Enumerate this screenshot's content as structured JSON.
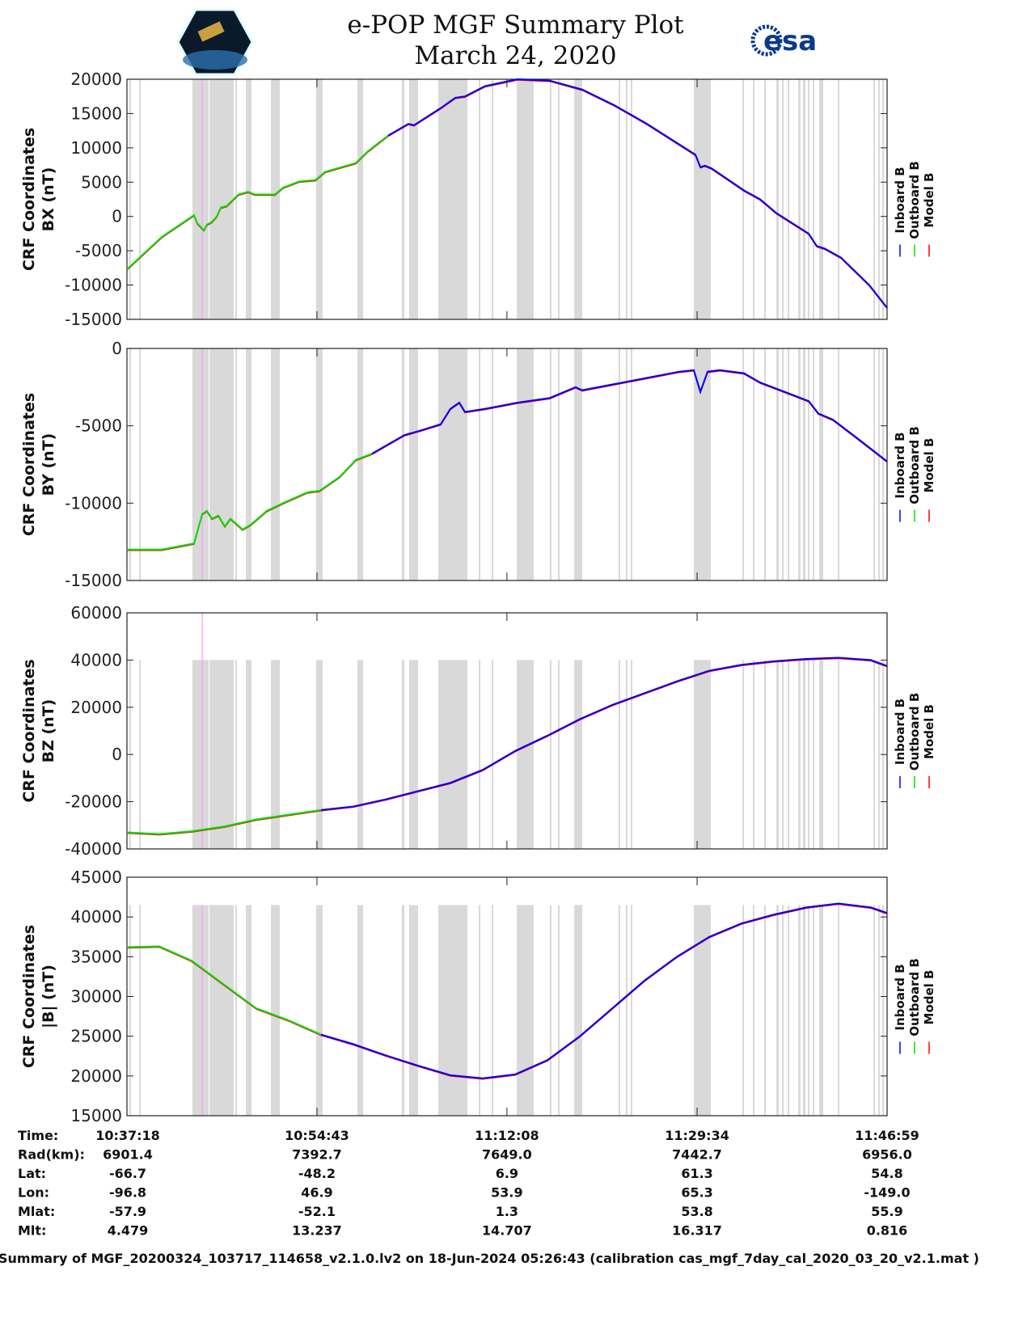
{
  "header": {
    "title": "e-POP MGF Summary Plot",
    "date": "March 24, 2020",
    "left_logo": "CASSIOPE",
    "right_logo": "esa"
  },
  "colors": {
    "inboard": "#0000ff",
    "outboard": "#00e000",
    "model": "#ff0000",
    "band": "#d9d9d9",
    "marker": "#ff99ff"
  },
  "chart_data": {
    "type": "line",
    "x_unit": "seconds since 10:37:18",
    "x_range": [
      0,
      4181
    ],
    "x_ticks": [
      0,
      1045,
      2090,
      3136,
      4181
    ],
    "legend": [
      "Inboard B",
      "Outboard B",
      "Model B"
    ],
    "legend_placement": "right",
    "bands_s": [
      [
        13,
        22
      ],
      [
        67,
        76
      ],
      [
        360,
        449
      ],
      [
        454,
        587
      ],
      [
        596,
        605
      ],
      [
        654,
        685
      ],
      [
        792,
        841
      ],
      [
        1041,
        1076
      ],
      [
        1268,
        1299
      ],
      [
        1512,
        1526
      ],
      [
        1552,
        1601
      ],
      [
        1712,
        1873
      ],
      [
        1935,
        1944
      ],
      [
        2006,
        2015
      ],
      [
        2144,
        2237
      ],
      [
        2326,
        2335
      ],
      [
        2371,
        2380
      ],
      [
        2460,
        2504
      ],
      [
        2704,
        2713
      ],
      [
        2744,
        2753
      ],
      [
        2771,
        2780
      ],
      [
        3118,
        3211
      ],
      [
        3385,
        3394
      ],
      [
        3443,
        3452
      ],
      [
        3505,
        3514
      ],
      [
        3572,
        3585
      ],
      [
        3603,
        3612
      ],
      [
        3634,
        3643
      ],
      [
        3692,
        3705
      ],
      [
        3718,
        3732
      ],
      [
        3745,
        3754
      ],
      [
        3772,
        3781
      ],
      [
        3808,
        3830
      ],
      [
        3910,
        3919
      ],
      [
        4106,
        4115
      ],
      [
        4132,
        4141
      ],
      [
        4155,
        4164
      ]
    ],
    "marker_s": 414,
    "panels": [
      {
        "ylabel1": "CRF Coordinates",
        "ylabel2": "BX (nT)",
        "ylim": [
          -15000,
          20000
        ],
        "yticks": [
          -15000,
          -10000,
          -5000,
          0,
          5000,
          10000,
          15000,
          20000
        ],
        "band_top": 20000,
        "marker_top": 20000,
        "inboard_start_s": 1437,
        "t": [
          0,
          191,
          369,
          387,
          423,
          440,
          467,
          494,
          516,
          547,
          614,
          667,
          703,
          814,
          858,
          947,
          1036,
          1090,
          1259,
          1325,
          1437,
          1548,
          1579,
          1726,
          1806,
          1859,
          1970,
          2148,
          2326,
          2504,
          2682,
          2860,
          3038,
          3127,
          3154,
          3180,
          3216,
          3394,
          3483,
          3572,
          3661,
          3750,
          3794,
          3839,
          3928,
          4083,
          4181
        ],
        "values": [
          -7700,
          -3000,
          200,
          -1000,
          -2000,
          -1200,
          -800,
          0,
          1300,
          1500,
          3200,
          3600,
          3200,
          3200,
          4200,
          5100,
          5300,
          6500,
          7800,
          9500,
          11800,
          13500,
          13300,
          15800,
          17300,
          17500,
          19000,
          20000,
          19800,
          18500,
          16200,
          13500,
          10500,
          9000,
          7200,
          7400,
          7000,
          3800,
          2500,
          500,
          -1000,
          -2500,
          -4300,
          -4700,
          -6000,
          -10000,
          -13300
        ]
      },
      {
        "ylabel1": "CRF Coordinates",
        "ylabel2": "BY (nT)",
        "ylim": [
          -15000,
          0
        ],
        "yticks": [
          -15000,
          -10000,
          -5000,
          0
        ],
        "band_top": 0,
        "marker_top": 0,
        "inboard_start_s": 1348,
        "t": [
          0,
          191,
          369,
          414,
          440,
          467,
          503,
          538,
          569,
          636,
          680,
          769,
          858,
          992,
          1059,
          1170,
          1259,
          1348,
          1437,
          1526,
          1615,
          1726,
          1779,
          1828,
          1859,
          1970,
          2148,
          2326,
          2468,
          2504,
          2682,
          2860,
          3038,
          3118,
          3154,
          3194,
          3261,
          3394,
          3483,
          3617,
          3750,
          3803,
          3883,
          4017,
          4181
        ],
        "values": [
          -13000,
          -13000,
          -12600,
          -10700,
          -10500,
          -11000,
          -10800,
          -11500,
          -11000,
          -11700,
          -11400,
          -10500,
          -10000,
          -9300,
          -9200,
          -8300,
          -7200,
          -6800,
          -6200,
          -5600,
          -5300,
          -4900,
          -3900,
          -3500,
          -4100,
          -3900,
          -3500,
          -3200,
          -2500,
          -2700,
          -2300,
          -1900,
          -1500,
          -1400,
          -2800,
          -1500,
          -1400,
          -1600,
          -2200,
          -2800,
          -3400,
          -4200,
          -4600,
          -5800,
          -7300
        ]
      },
      {
        "ylabel1": "CRF Coordinates",
        "ylabel2": "BZ (nT)",
        "ylim": [
          -40000,
          60000
        ],
        "yticks": [
          -40000,
          -20000,
          0,
          20000,
          40000,
          60000
        ],
        "band_top": 40000,
        "marker_top": 60000,
        "inboard_start_s": 1148,
        "t": [
          0,
          178,
          356,
          534,
          712,
          890,
          1068,
          1246,
          1423,
          1601,
          1779,
          1957,
          2135,
          2313,
          2491,
          2669,
          2847,
          3025,
          3203,
          3381,
          3558,
          3736,
          3914,
          4092,
          4181
        ],
        "values": [
          -33000,
          -33700,
          -32500,
          -30500,
          -27500,
          -25500,
          -23500,
          -22000,
          -19000,
          -15500,
          -12000,
          -6500,
          1500,
          8000,
          15000,
          21000,
          26000,
          31000,
          35500,
          38000,
          39500,
          40500,
          41000,
          40000,
          37500
        ]
      },
      {
        "ylabel1": "CRF Coordinates",
        "ylabel2": "|B| (nT)",
        "ylim": [
          15000,
          45000
        ],
        "yticks": [
          15000,
          20000,
          25000,
          30000,
          35000,
          40000,
          45000
        ],
        "band_top": 41500,
        "marker_top": 41500,
        "inboard_start_s": 1192,
        "t": [
          0,
          178,
          356,
          534,
          712,
          890,
          1068,
          1246,
          1423,
          1601,
          1779,
          1957,
          2135,
          2313,
          2491,
          2669,
          2847,
          3025,
          3203,
          3381,
          3558,
          3736,
          3914,
          4092,
          4181
        ],
        "values": [
          36200,
          36300,
          34500,
          31500,
          28500,
          27000,
          25200,
          24000,
          22600,
          21300,
          20100,
          19700,
          20200,
          22000,
          25000,
          28500,
          32000,
          35000,
          37500,
          39200,
          40300,
          41200,
          41700,
          41200,
          40500
        ]
      }
    ]
  },
  "ephemeris": {
    "labels": [
      "Time:",
      "Rad(km):",
      "Lat:",
      "Lon:",
      "Mlat:",
      "Mlt:"
    ],
    "columns": [
      [
        "10:37:18",
        "6901.4",
        "-66.7",
        "-96.8",
        "-57.9",
        "4.479"
      ],
      [
        "10:54:43",
        "7392.7",
        "-48.2",
        "46.9",
        "-52.1",
        "13.237"
      ],
      [
        "11:12:08",
        "7649.0",
        "6.9",
        "53.9",
        "1.3",
        "14.707"
      ],
      [
        "11:29:34",
        "7442.7",
        "61.3",
        "65.3",
        "53.8",
        "16.317"
      ],
      [
        "11:46:59",
        "6956.0",
        "54.8",
        "-149.0",
        "55.9",
        "0.816"
      ]
    ]
  },
  "footer": "Summary of MGF_20200324_103717_114658_v2.1.0.lv2 on 18-Jun-2024 05:26:43 (calibration cas_mgf_7day_cal_2020_03_20_v2.1.mat )"
}
